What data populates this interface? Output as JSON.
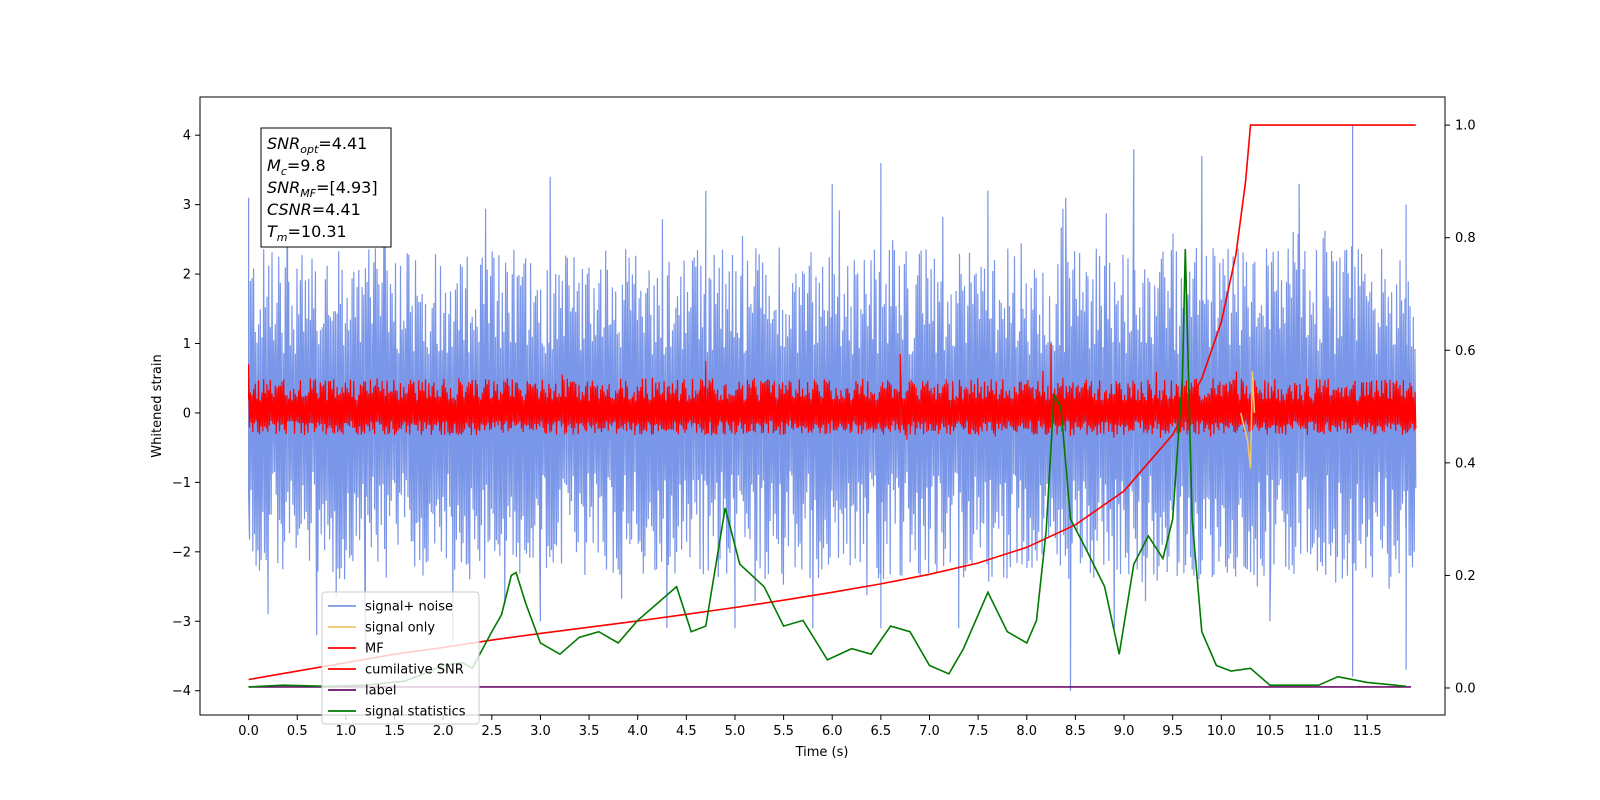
{
  "chart_data": {
    "type": "line",
    "xlabel": "Time (s)",
    "ylabel": "Whitened strain",
    "xlim": [
      -0.5,
      12.3
    ],
    "ylim": [
      -4.35,
      4.55
    ],
    "y2lim": [
      -0.048,
      1.05
    ],
    "xticks": [
      "0.0",
      "0.5",
      "1.0",
      "1.5",
      "2.0",
      "2.5",
      "3.0",
      "3.5",
      "4.0",
      "4.5",
      "5.0",
      "5.5",
      "6.0",
      "6.5",
      "7.0",
      "7.5",
      "8.0",
      "8.5",
      "9.0",
      "9.5",
      "10.0",
      "10.5",
      "11.0",
      "11.5"
    ],
    "yticks": [
      "4",
      "3",
      "2",
      "1",
      "0",
      "−1",
      "−2",
      "−3",
      "−4"
    ],
    "y2ticks": [
      "1.0",
      "0.8",
      "0.6",
      "0.4",
      "0.2",
      "0.0"
    ],
    "annotation": {
      "lines": [
        {
          "main": "SNR",
          "sub": "opt",
          "value": "=4.41"
        },
        {
          "main": "M",
          "sub": "c",
          "value": "=9.8"
        },
        {
          "main": "SNR",
          "sub": "MF",
          "value": "=[4.93]"
        },
        {
          "main": "CSNR",
          "sub": "",
          "value": "=4.41"
        },
        {
          "main": "T",
          "sub": "m",
          "value": "=10.31"
        }
      ]
    },
    "legend": {
      "placement": "lower-left",
      "entries": [
        {
          "name": "signal+ noise",
          "color": "#7a96e8"
        },
        {
          "name": "signal only",
          "color": "#f2c46e"
        },
        {
          "name": "MF",
          "color": "#ff0000"
        },
        {
          "name": "cumilative SNR",
          "color": "#ff0000"
        },
        {
          "name": "label",
          "color": "#6a0d6a"
        },
        {
          "name": "signal statistics",
          "color": "#007a00"
        }
      ]
    },
    "series": [
      {
        "name": "signal+ noise",
        "axis": "left",
        "color": "#7a96e8",
        "x_range": [
          0.0,
          12.0
        ],
        "envelope_upper": 2.4,
        "envelope_lower": -2.4,
        "peaks_upper": [
          [
            0.0,
            3.1
          ],
          [
            0.4,
            2.6
          ],
          [
            1.4,
            3.0
          ],
          [
            3.1,
            3.4
          ],
          [
            4.7,
            3.2
          ],
          [
            6.0,
            3.3
          ],
          [
            6.5,
            3.6
          ],
          [
            7.6,
            3.2
          ],
          [
            8.4,
            3.1
          ],
          [
            9.1,
            3.8
          ],
          [
            9.8,
            3.7
          ],
          [
            10.8,
            3.3
          ],
          [
            11.35,
            4.15
          ],
          [
            11.9,
            3.0
          ]
        ],
        "peaks_lower": [
          [
            0.0,
            -1.2
          ],
          [
            0.2,
            -2.9
          ],
          [
            0.7,
            -3.2
          ],
          [
            1.2,
            -3.4
          ],
          [
            2.1,
            -3.3
          ],
          [
            3.0,
            -3.0
          ],
          [
            4.3,
            -3.1
          ],
          [
            5.0,
            -3.1
          ],
          [
            5.8,
            -3.1
          ],
          [
            6.5,
            -3.1
          ],
          [
            7.3,
            -3.1
          ],
          [
            8.45,
            -4.0
          ],
          [
            8.9,
            -3.1
          ],
          [
            10.5,
            -3.0
          ],
          [
            11.35,
            -3.8
          ],
          [
            11.9,
            -3.7
          ]
        ]
      },
      {
        "name": "signal only",
        "axis": "left",
        "color": "#f2c46e",
        "points": [
          [
            10.2,
            0.0
          ],
          [
            10.27,
            -0.4
          ],
          [
            10.3,
            -0.8
          ],
          [
            10.32,
            0.6
          ],
          [
            10.34,
            0.0
          ]
        ]
      },
      {
        "name": "MF",
        "axis": "left",
        "color": "#ff0000",
        "x_range": [
          0.0,
          12.0
        ],
        "envelope_upper": 0.5,
        "envelope_lower": -0.32,
        "peaks_upper": [
          [
            0.0,
            0.7
          ],
          [
            4.7,
            0.75
          ],
          [
            6.7,
            0.85
          ],
          [
            8.25,
            1.0
          ],
          [
            9.6,
            0.5
          ]
        ]
      },
      {
        "name": "cumilative SNR",
        "axis": "right",
        "color": "#ff0000",
        "points": [
          [
            0.0,
            0.015
          ],
          [
            0.5,
            0.03
          ],
          [
            1.0,
            0.045
          ],
          [
            1.5,
            0.06
          ],
          [
            2.0,
            0.072
          ],
          [
            2.5,
            0.085
          ],
          [
            3.0,
            0.097
          ],
          [
            3.5,
            0.108
          ],
          [
            4.0,
            0.119
          ],
          [
            4.5,
            0.131
          ],
          [
            5.0,
            0.143
          ],
          [
            5.5,
            0.156
          ],
          [
            6.0,
            0.17
          ],
          [
            6.5,
            0.185
          ],
          [
            7.0,
            0.202
          ],
          [
            7.5,
            0.222
          ],
          [
            8.0,
            0.25
          ],
          [
            8.5,
            0.29
          ],
          [
            9.0,
            0.35
          ],
          [
            9.5,
            0.45
          ],
          [
            9.8,
            0.55
          ],
          [
            10.0,
            0.65
          ],
          [
            10.15,
            0.77
          ],
          [
            10.25,
            0.9
          ],
          [
            10.3,
            1.0
          ],
          [
            12.0,
            1.0
          ]
        ]
      },
      {
        "name": "label",
        "axis": "right",
        "color": "#6a0d6a",
        "points": [
          [
            0.0,
            0.002
          ],
          [
            11.95,
            0.002
          ]
        ]
      },
      {
        "name": "signal statistics",
        "axis": "right",
        "color": "#007a00",
        "points": [
          [
            0.0,
            0.002
          ],
          [
            0.35,
            0.005
          ],
          [
            0.8,
            0.003
          ],
          [
            1.2,
            0.005
          ],
          [
            1.6,
            0.012
          ],
          [
            1.8,
            0.025
          ],
          [
            2.0,
            0.04
          ],
          [
            2.2,
            0.045
          ],
          [
            2.3,
            0.035
          ],
          [
            2.5,
            0.1
          ],
          [
            2.6,
            0.13
          ],
          [
            2.7,
            0.2
          ],
          [
            2.75,
            0.205
          ],
          [
            2.85,
            0.15
          ],
          [
            3.0,
            0.08
          ],
          [
            3.2,
            0.06
          ],
          [
            3.4,
            0.09
          ],
          [
            3.6,
            0.1
          ],
          [
            3.8,
            0.08
          ],
          [
            4.0,
            0.12
          ],
          [
            4.2,
            0.15
          ],
          [
            4.4,
            0.18
          ],
          [
            4.55,
            0.1
          ],
          [
            4.7,
            0.11
          ],
          [
            4.9,
            0.32
          ],
          [
            5.05,
            0.22
          ],
          [
            5.3,
            0.18
          ],
          [
            5.5,
            0.11
          ],
          [
            5.7,
            0.12
          ],
          [
            5.95,
            0.05
          ],
          [
            6.2,
            0.07
          ],
          [
            6.4,
            0.06
          ],
          [
            6.6,
            0.11
          ],
          [
            6.8,
            0.1
          ],
          [
            7.0,
            0.04
          ],
          [
            7.2,
            0.025
          ],
          [
            7.35,
            0.07
          ],
          [
            7.6,
            0.17
          ],
          [
            7.8,
            0.1
          ],
          [
            8.0,
            0.08
          ],
          [
            8.1,
            0.12
          ],
          [
            8.2,
            0.28
          ],
          [
            8.28,
            0.52
          ],
          [
            8.35,
            0.5
          ],
          [
            8.45,
            0.3
          ],
          [
            8.6,
            0.25
          ],
          [
            8.8,
            0.18
          ],
          [
            8.95,
            0.06
          ],
          [
            9.1,
            0.22
          ],
          [
            9.25,
            0.27
          ],
          [
            9.4,
            0.23
          ],
          [
            9.5,
            0.3
          ],
          [
            9.6,
            0.55
          ],
          [
            9.63,
            0.78
          ],
          [
            9.7,
            0.3
          ],
          [
            9.8,
            0.1
          ],
          [
            9.95,
            0.04
          ],
          [
            10.1,
            0.03
          ],
          [
            10.3,
            0.035
          ],
          [
            10.5,
            0.005
          ],
          [
            11.0,
            0.005
          ],
          [
            11.2,
            0.02
          ],
          [
            11.5,
            0.01
          ],
          [
            11.9,
            0.003
          ]
        ]
      }
    ]
  }
}
